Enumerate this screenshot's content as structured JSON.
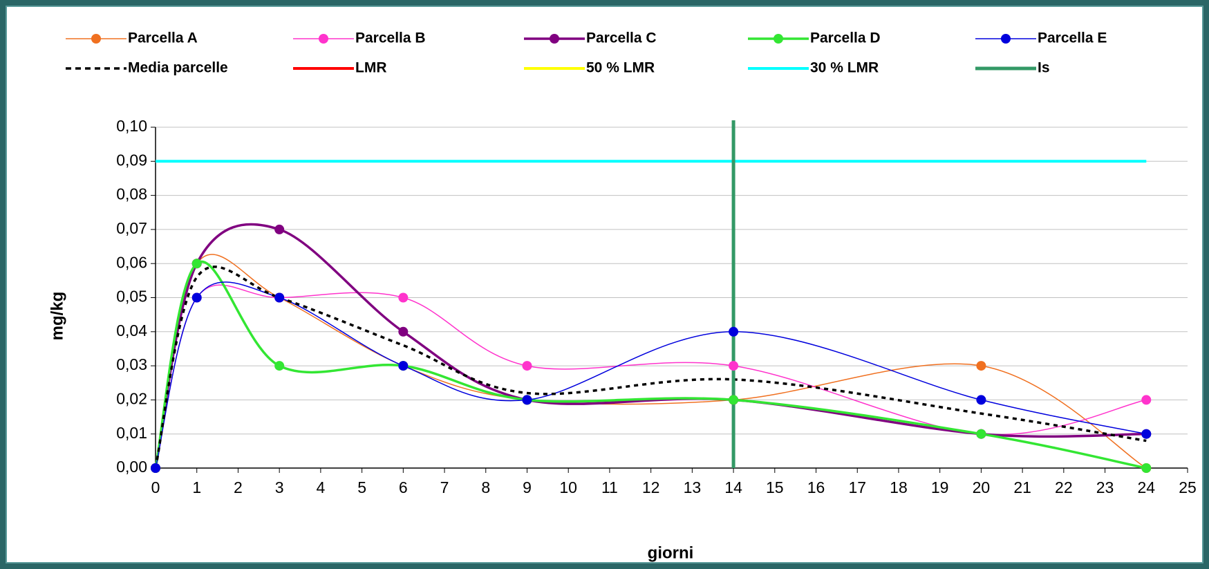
{
  "chart_data": {
    "type": "line",
    "x_label": "giorni",
    "y_label": "mg/kg",
    "x": [
      0,
      1,
      3,
      6,
      9,
      14,
      20,
      24
    ],
    "xlim": [
      0,
      25
    ],
    "xticks": [
      0,
      1,
      2,
      3,
      4,
      5,
      6,
      7,
      8,
      9,
      10,
      11,
      12,
      13,
      14,
      15,
      16,
      17,
      18,
      19,
      20,
      21,
      22,
      23,
      24,
      25
    ],
    "ylim": [
      0,
      0.1
    ],
    "yticks": [
      {
        "value": 0,
        "label": "0,00"
      },
      {
        "value": 0.01,
        "label": "0,01"
      },
      {
        "value": 0.02,
        "label": "0,02"
      },
      {
        "value": 0.03,
        "label": "0,03"
      },
      {
        "value": 0.04,
        "label": "0,04"
      },
      {
        "value": 0.05,
        "label": "0,05"
      },
      {
        "value": 0.06,
        "label": "0,06"
      },
      {
        "value": 0.07,
        "label": "0,07"
      },
      {
        "value": 0.08,
        "label": "0,08"
      },
      {
        "value": 0.09,
        "label": "0,09"
      },
      {
        "value": 0.1,
        "label": "0,10"
      }
    ],
    "grid": true,
    "legend": "top",
    "series": [
      {
        "name": "Parcella A",
        "color": "#f07020",
        "width": 1.5,
        "markers": true,
        "values": [
          0,
          0.06,
          0.05,
          0.03,
          0.02,
          0.02,
          0.03,
          0
        ]
      },
      {
        "name": "Parcella B",
        "color": "#ff33cc",
        "width": 1.5,
        "markers": true,
        "values": [
          0,
          0.05,
          0.05,
          0.05,
          0.03,
          0.03,
          0.01,
          0.02
        ]
      },
      {
        "name": "Parcella C",
        "color": "#800080",
        "width": 3.5,
        "markers": true,
        "values": [
          0,
          0.06,
          0.07,
          0.04,
          0.02,
          0.02,
          0.01,
          0.01
        ]
      },
      {
        "name": "Parcella D",
        "color": "#33e633",
        "width": 3.5,
        "markers": true,
        "values": [
          0,
          0.06,
          0.03,
          0.03,
          0.02,
          0.02,
          0.01,
          0
        ]
      },
      {
        "name": "Parcella E",
        "color": "#0000dd",
        "width": 1.5,
        "markers": true,
        "values": [
          0,
          0.05,
          0.05,
          0.03,
          0.02,
          0.04,
          0.02,
          0.01
        ]
      },
      {
        "name": "Media parcelle",
        "color": "#000000",
        "width": 3.5,
        "dash": true,
        "values": [
          0,
          0.056,
          0.05,
          0.036,
          0.022,
          0.026,
          0.016,
          0.008
        ]
      },
      {
        "name": "LMR",
        "color": "#ff0000",
        "width": 4
      },
      {
        "name": "50 % LMR",
        "color": "#ffff00",
        "width": 4
      },
      {
        "name": "30 % LMR",
        "color": "#00ffff",
        "width": 4,
        "hline": 0.09
      },
      {
        "name": "Is",
        "color": "#339966",
        "width": 5,
        "vline": 14
      }
    ]
  }
}
